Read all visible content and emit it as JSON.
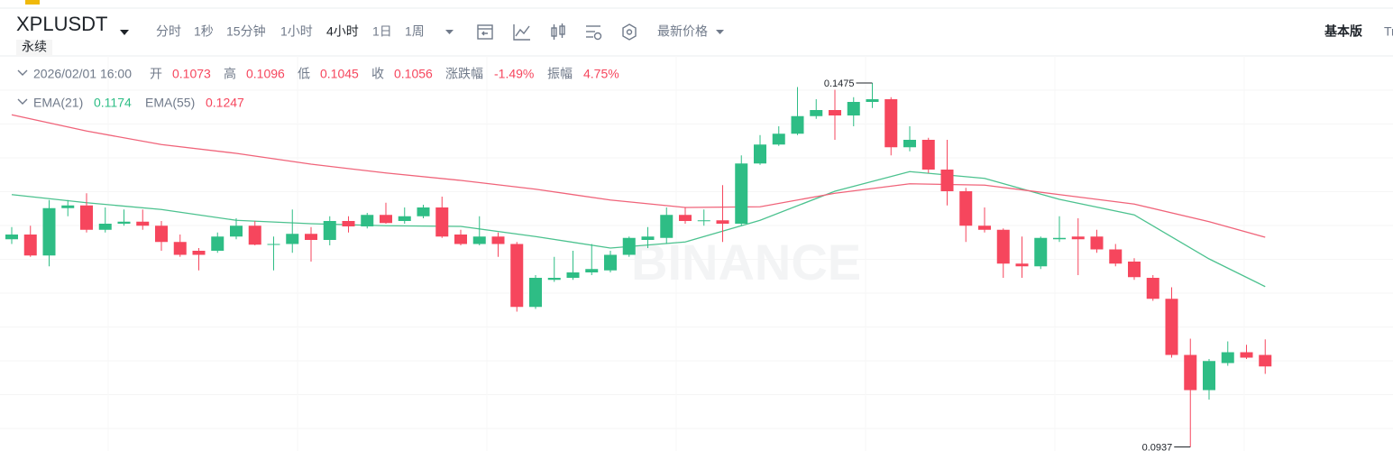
{
  "toolbar": {
    "symbol": "XPLUSDT",
    "badge": "永续",
    "intervals": [
      "分时",
      "1秒",
      "15分钟",
      "1小时",
      "4小时",
      "1日",
      "1周"
    ],
    "price_type": "最新价格",
    "version": "基本版",
    "tradingview": "Tr"
  },
  "info": {
    "time": "2026/02/01 16:00",
    "labels": [
      "开",
      "高",
      "低",
      "收"
    ],
    "change_label": "涨跌幅",
    "change": "-1.49%",
    "amplitude_label": "振幅",
    "amplitude": "4.75%"
  },
  "watermark": "BINANCE",
  "chart_data": {
    "type": "candlestick",
    "up_color": "#2ebd85",
    "down_color": "#f6465d",
    "ylim": [
      0.0931,
      0.1515
    ],
    "open": [
      0.1244,
      0.1251,
      0.122,
      0.129,
      0.1294,
      0.1258,
      0.1267,
      0.127,
      0.1264,
      0.124,
      0.1227,
      0.1227,
      0.1248,
      0.1264,
      0.1236,
      0.1237,
      0.1252,
      0.1243,
      0.1271,
      0.1263,
      0.128,
      0.1271,
      0.1278,
      0.1291,
      0.1251,
      0.1237,
      0.1248,
      0.1237,
      0.1144,
      0.1184,
      0.1187,
      0.1195,
      0.1198,
      0.1221,
      0.1243,
      0.1246,
      0.128,
      0.1271,
      0.1272,
      0.1267,
      0.1356,
      0.1384,
      0.14,
      0.1426,
      0.1435,
      0.1427,
      0.1447,
      0.1451,
      0.138,
      0.1391,
      0.1347,
      0.1315,
      0.1264,
      0.1258,
      0.1208,
      0.1204,
      0.1244,
      0.1248,
      0.1248,
      0.1229,
      0.1211,
      0.1187,
      0.1156,
      0.1073,
      0.1021,
      0.1061,
      0.1077,
      0.1073
    ],
    "high": [
      0.1262,
      0.1264,
      0.1302,
      0.1302,
      0.1312,
      0.1291,
      0.1288,
      0.1288,
      0.1271,
      0.1251,
      0.1231,
      0.1254,
      0.1275,
      0.1271,
      0.1248,
      0.1288,
      0.1262,
      0.1278,
      0.1278,
      0.1283,
      0.1298,
      0.1291,
      0.1295,
      0.1307,
      0.1258,
      0.1278,
      0.1254,
      0.124,
      0.1191,
      0.1218,
      0.1227,
      0.1237,
      0.1227,
      0.1248,
      0.1262,
      0.1291,
      0.1291,
      0.1288,
      0.1324,
      0.1368,
      0.1398,
      0.1411,
      0.1469,
      0.1451,
      0.1465,
      0.1454,
      0.1475,
      0.1454,
      0.1411,
      0.1394,
      0.1391,
      0.132,
      0.1291,
      0.126,
      0.1248,
      0.1248,
      0.1278,
      0.1275,
      0.1258,
      0.1237,
      0.1216,
      0.1191,
      0.1173,
      0.1097,
      0.1067,
      0.1093,
      0.1088,
      0.1096
    ],
    "low": [
      0.1237,
      0.1218,
      0.1204,
      0.1278,
      0.1254,
      0.1254,
      0.1264,
      0.1258,
      0.1227,
      0.1218,
      0.1198,
      0.1224,
      0.1244,
      0.1235,
      0.1198,
      0.1224,
      0.1211,
      0.1235,
      0.1254,
      0.126,
      0.1267,
      0.1267,
      0.1275,
      0.1246,
      0.1235,
      0.1235,
      0.1218,
      0.1137,
      0.1141,
      0.1181,
      0.1184,
      0.1191,
      0.1195,
      0.1218,
      0.1231,
      0.1237,
      0.1267,
      0.1264,
      0.124,
      0.1264,
      0.1354,
      0.1382,
      0.1398,
      0.1422,
      0.1391,
      0.1411,
      0.1438,
      0.1368,
      0.1374,
      0.1342,
      0.1294,
      0.124,
      0.1254,
      0.1187,
      0.1187,
      0.12,
      0.124,
      0.1191,
      0.1224,
      0.1204,
      0.1184,
      0.1153,
      0.1069,
      0.0937,
      0.1007,
      0.1057,
      0.1067,
      0.1045
    ],
    "close": [
      0.1251,
      0.122,
      0.129,
      0.1294,
      0.1258,
      0.1267,
      0.127,
      0.1264,
      0.124,
      0.1221,
      0.1221,
      0.1248,
      0.1264,
      0.1236,
      0.1237,
      0.1252,
      0.1243,
      0.1271,
      0.1263,
      0.128,
      0.1268,
      0.1278,
      0.1291,
      0.1248,
      0.1237,
      0.1248,
      0.1237,
      0.1144,
      0.1187,
      0.1187,
      0.1195,
      0.12,
      0.1221,
      0.1246,
      0.1248,
      0.128,
      0.1271,
      0.1272,
      0.1267,
      0.1356,
      0.1384,
      0.14,
      0.1426,
      0.1435,
      0.1427,
      0.1447,
      0.1451,
      0.138,
      0.1391,
      0.1347,
      0.1315,
      0.1264,
      0.1258,
      0.1208,
      0.1204,
      0.1246,
      0.1246,
      0.1244,
      0.1229,
      0.1208,
      0.1188,
      0.1156,
      0.1073,
      0.1021,
      0.1064,
      0.1077,
      0.1069,
      0.1056
    ],
    "ema": [
      {
        "name": "EMA(21)",
        "color": "#4cc28f",
        "x": [
          0,
          4,
          8,
          12,
          16,
          20,
          24,
          28,
          32,
          36,
          40,
          44,
          48,
          52,
          56,
          60,
          64,
          67
        ],
        "values": [
          0.131,
          0.1298,
          0.1288,
          0.1272,
          0.1267,
          0.1264,
          0.1263,
          0.1248,
          0.1231,
          0.124,
          0.1272,
          0.1315,
          0.1344,
          0.1334,
          0.1303,
          0.128,
          0.1215,
          0.1174
        ]
      },
      {
        "name": "EMA(55)",
        "color": "#f0647a",
        "x": [
          0,
          4,
          8,
          12,
          16,
          20,
          24,
          28,
          32,
          36,
          40,
          44,
          48,
          52,
          56,
          60,
          64,
          67
        ],
        "values": [
          0.1428,
          0.1404,
          0.1384,
          0.1371,
          0.1355,
          0.1342,
          0.1331,
          0.1318,
          0.1302,
          0.1291,
          0.1292,
          0.1312,
          0.1326,
          0.1324,
          0.131,
          0.1296,
          0.127,
          0.1247
        ]
      }
    ]
  }
}
